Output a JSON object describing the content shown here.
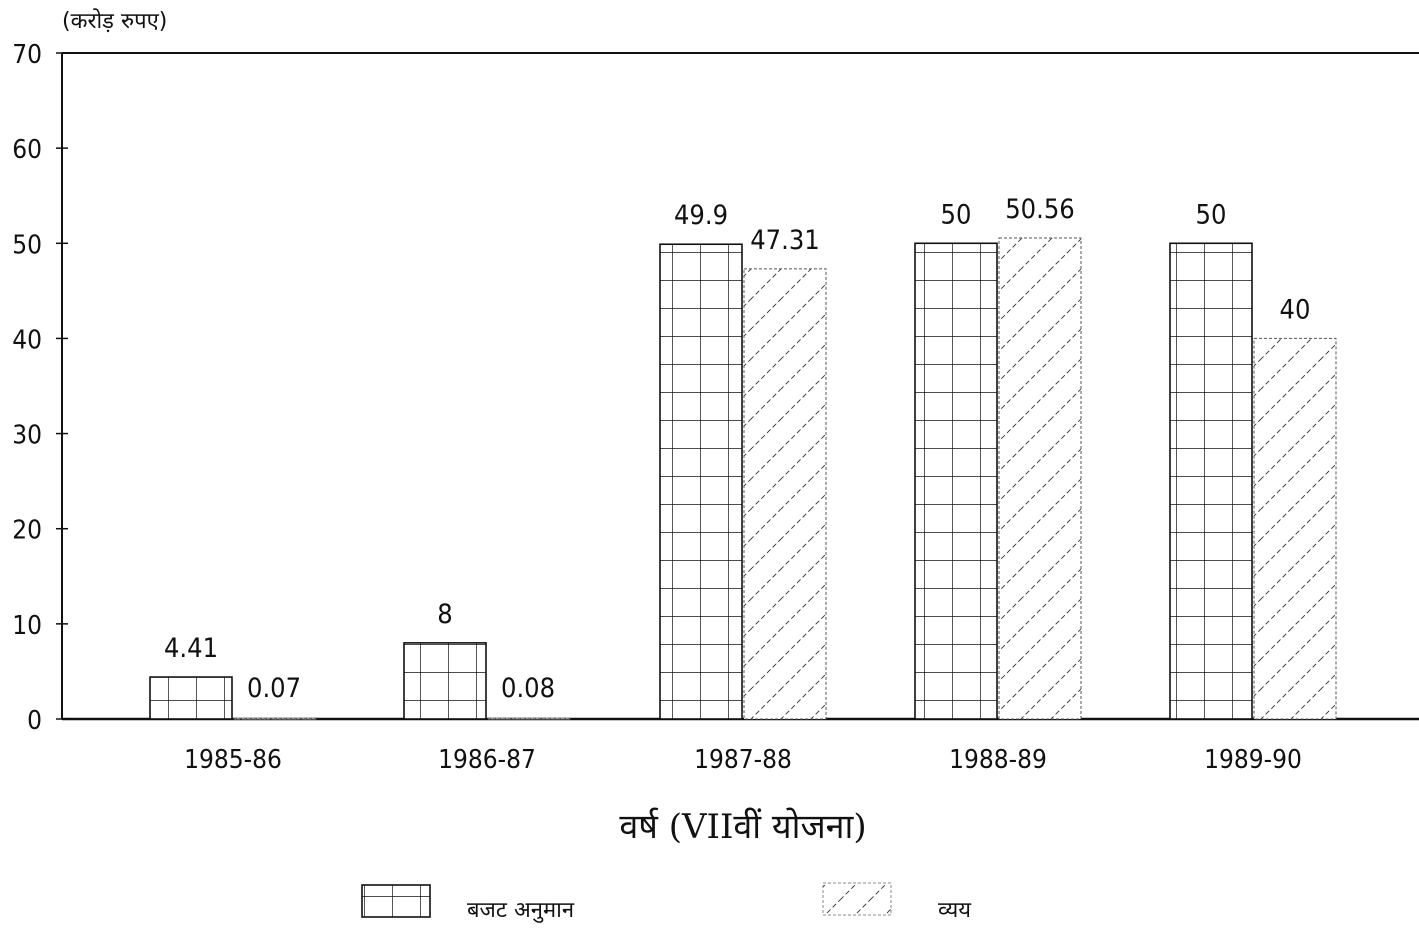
{
  "chart_data": {
    "type": "bar",
    "unit_label": "(करोड़   रुपए)",
    "xlabel": "वर्ष  (VIIवीं  योजना)",
    "ylabel": "",
    "ylim": [
      0,
      70
    ],
    "y_ticks": [
      0,
      10,
      20,
      30,
      40,
      50,
      60,
      70
    ],
    "categories": [
      "1985-86",
      "1986-87",
      "1987-88",
      "1988-89",
      "1989-90"
    ],
    "series": [
      {
        "name": "बजट   अनुमान",
        "pattern": "grid",
        "values": [
          4.41,
          8,
          49.9,
          50,
          50
        ],
        "value_labels": [
          "4.41",
          "8",
          "49.9",
          "50",
          "50"
        ]
      },
      {
        "name": "व्यय",
        "pattern": "diagonal-hatch",
        "values": [
          0.07,
          0.08,
          47.31,
          50.56,
          40
        ],
        "value_labels": [
          "0.07",
          "0.08",
          "47.31",
          "50.56",
          "40"
        ]
      }
    ],
    "grid": false,
    "legend": "bottom",
    "colors": {
      "ink": "#111111",
      "background": "#ffffff"
    }
  }
}
